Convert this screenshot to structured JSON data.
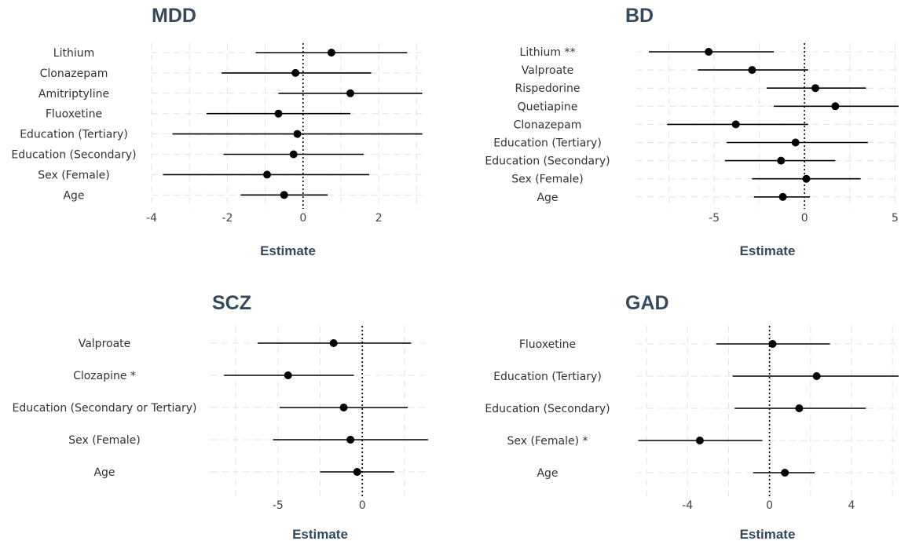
{
  "chart_data": [
    {
      "type": "forest",
      "title": "MDD",
      "xlabel": "Estimate",
      "xlim": [
        -4,
        3.2
      ],
      "xticks": [
        -4,
        -2,
        0,
        2
      ],
      "reference_line": 0,
      "rows": [
        {
          "label": "Lithium",
          "estimate": 0.75,
          "lower": -1.25,
          "upper": 2.75
        },
        {
          "label": "Clonazepam",
          "estimate": -0.2,
          "lower": -2.15,
          "upper": 1.8
        },
        {
          "label": "Amitriptyline",
          "estimate": 1.25,
          "lower": -0.65,
          "upper": 3.15
        },
        {
          "label": "Fluoxetine",
          "estimate": -0.65,
          "lower": -2.55,
          "upper": 1.25
        },
        {
          "label": "Education (Tertiary)",
          "estimate": -0.15,
          "lower": -3.45,
          "upper": 3.15
        },
        {
          "label": "Education (Secondary)",
          "estimate": -0.25,
          "lower": -2.1,
          "upper": 1.6
        },
        {
          "label": "Sex (Female)",
          "estimate": -0.95,
          "lower": -3.7,
          "upper": 1.75
        },
        {
          "label": "Age",
          "estimate": -0.5,
          "lower": -1.65,
          "upper": 0.65
        }
      ]
    },
    {
      "type": "forest",
      "title": "BD",
      "xlabel": "Estimate",
      "xlim": [
        -9.3,
        5.2
      ],
      "xticks": [
        -5,
        0,
        5
      ],
      "reference_line": 0,
      "rows": [
        {
          "label": "Lithium **",
          "estimate": -5.3,
          "lower": -8.6,
          "upper": -1.7
        },
        {
          "label": "Valproate",
          "estimate": -2.9,
          "lower": -5.9,
          "upper": 0.2
        },
        {
          "label": "Rispedorine",
          "estimate": 0.6,
          "lower": -2.1,
          "upper": 3.4
        },
        {
          "label": "Quetiapine",
          "estimate": 1.7,
          "lower": -1.7,
          "upper": 5.2
        },
        {
          "label": "Clonazepam",
          "estimate": -3.8,
          "lower": -7.6,
          "upper": 0.2
        },
        {
          "label": "Education (Tertiary)",
          "estimate": -0.5,
          "lower": -4.3,
          "upper": 3.5
        },
        {
          "label": "Education (Secondary)",
          "estimate": -1.3,
          "lower": -4.4,
          "upper": 1.7
        },
        {
          "label": "Sex (Female)",
          "estimate": 0.1,
          "lower": -2.9,
          "upper": 3.1
        },
        {
          "label": "Age",
          "estimate": -1.2,
          "lower": -2.8,
          "upper": 0.3
        }
      ]
    },
    {
      "type": "forest",
      "title": "SCZ",
      "xlabel": "Estimate",
      "xlim": [
        -9,
        4
      ],
      "xticks": [
        -5,
        0
      ],
      "reference_line": 0,
      "rows": [
        {
          "label": "Valproate",
          "estimate": -1.7,
          "lower": -6.2,
          "upper": 2.9
        },
        {
          "label": "Clozapine *",
          "estimate": -4.4,
          "lower": -8.2,
          "upper": -0.5
        },
        {
          "label": "Education (Secondary or Tertiary)",
          "estimate": -1.1,
          "lower": -4.9,
          "upper": 2.7
        },
        {
          "label": "Sex (Female)",
          "estimate": -0.7,
          "lower": -5.3,
          "upper": 3.9
        },
        {
          "label": "Age",
          "estimate": -0.3,
          "lower": -2.5,
          "upper": 1.9
        }
      ]
    },
    {
      "type": "forest",
      "title": "GAD",
      "xlabel": "Estimate",
      "xlim": [
        -6.5,
        6.3
      ],
      "xticks": [
        -4,
        0,
        4
      ],
      "reference_line": 0,
      "rows": [
        {
          "label": "Fluoxetine",
          "estimate": 0.15,
          "lower": -2.6,
          "upper": 2.95
        },
        {
          "label": "Education (Tertiary)",
          "estimate": 2.3,
          "lower": -1.8,
          "upper": 6.3
        },
        {
          "label": "Education (Secondary)",
          "estimate": 1.45,
          "lower": -1.7,
          "upper": 4.7
        },
        {
          "label": "Sex (Female) *",
          "estimate": -3.4,
          "lower": -6.4,
          "upper": -0.35
        },
        {
          "label": "Age",
          "estimate": 0.75,
          "lower": -0.8,
          "upper": 2.2
        }
      ]
    }
  ]
}
